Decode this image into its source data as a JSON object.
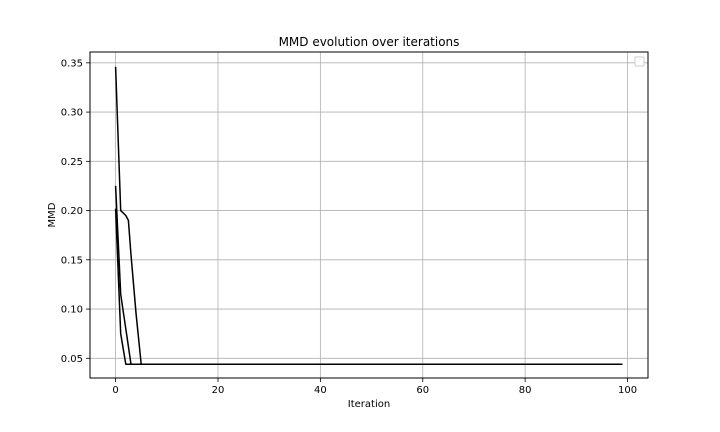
{
  "chart_data": {
    "type": "line",
    "title": "MMD evolution over iterations",
    "xlabel": "Iteration",
    "ylabel": "MMD",
    "xlim": [
      -5,
      104
    ],
    "ylim": [
      0.03,
      0.361
    ],
    "xticks": [
      0,
      20,
      40,
      60,
      80,
      100
    ],
    "yticks": [
      0.05,
      0.1,
      0.15,
      0.2,
      0.25,
      0.3,
      0.35
    ],
    "grid": true,
    "legend": "upper right (empty box)",
    "series_color": "#000000",
    "series": [
      {
        "points": [
          [
            0,
            0.346
          ],
          [
            1,
            0.2
          ],
          [
            2,
            0.195
          ],
          [
            2.5,
            0.19
          ],
          [
            3,
            0.155
          ],
          [
            4,
            0.095
          ],
          [
            5,
            0.044
          ],
          [
            99,
            0.044
          ]
        ]
      },
      {
        "points": [
          [
            0,
            0.225
          ],
          [
            1,
            0.115
          ],
          [
            2,
            0.08
          ],
          [
            3,
            0.044
          ],
          [
            99,
            0.044
          ]
        ]
      },
      {
        "points": [
          [
            0,
            0.202
          ],
          [
            1,
            0.075
          ],
          [
            2,
            0.044
          ],
          [
            99,
            0.044
          ]
        ]
      }
    ]
  }
}
